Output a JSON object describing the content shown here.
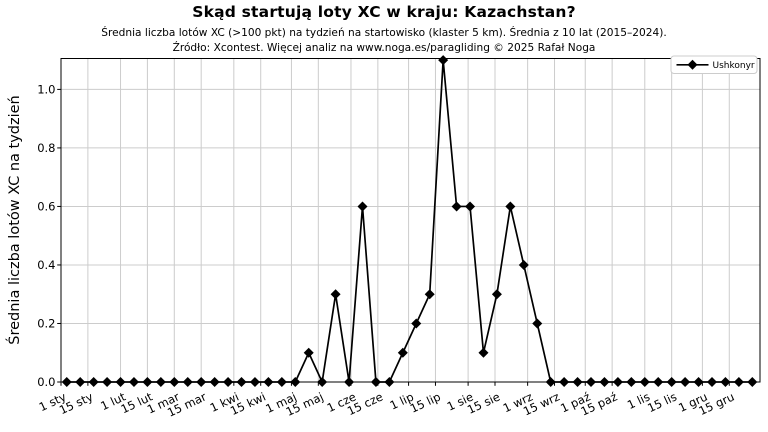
{
  "header": {
    "title": "Skąd startują loty XC w kraju: Kazachstan?",
    "subtitle": "Średnia liczba lotów XC (>100 pkt) na tydzień na startowisko (klaster 5 km). Średnia z 10 lat (2015–2024).",
    "source_note": "Źródło: Xcontest. Więcej analiz na www.noga.es/paragliding © 2025 Rafał Noga"
  },
  "chart_data": {
    "type": "line",
    "title": "Skąd startują loty XC w kraju: Kazachstan?",
    "subtitle": "Średnia liczba lotów XC (>100 pkt) na tydzień na startowisko (klaster 5 km). Średnia z 10 lat (2015–2024).",
    "source_note": "Źródło: Xcontest. Więcej analiz na www.noga.es/paragliding © 2025 Rafał Noga",
    "xlabel": "",
    "ylabel": "Średnia liczba lotów XC na tydzień",
    "ylim": [
      0,
      1.105
    ],
    "y_ticks": [
      0,
      0.2,
      0.4,
      0.6,
      0.8,
      1.0
    ],
    "grid": true,
    "legend_position": "top-right",
    "x_axis": {
      "unit": "day-of-year",
      "range_days": [
        0,
        364
      ],
      "tick_labels": [
        "1 sty",
        "15 sty",
        "1 lut",
        "15 lut",
        "1 mar",
        "15 mar",
        "1 kwi",
        "15 kwi",
        "1 maj",
        "15 maj",
        "1 cze",
        "15 cze",
        "1 lip",
        "15 lip",
        "1 sie",
        "15 sie",
        "1 wrz",
        "15 wrz",
        "1 paź",
        "15 paź",
        "1 lis",
        "15 lis",
        "1 gru",
        "15 gru"
      ],
      "tick_days": [
        0,
        14,
        31,
        45,
        59,
        73,
        90,
        104,
        120,
        134,
        151,
        165,
        181,
        195,
        212,
        226,
        243,
        257,
        273,
        287,
        304,
        318,
        334,
        348
      ]
    },
    "series": [
      {
        "name": "Ushkonyr",
        "marker": "diamond",
        "start_day": 3,
        "step_days": 7,
        "values": [
          0,
          0,
          0,
          0,
          0,
          0,
          0,
          0,
          0,
          0,
          0,
          0,
          0,
          0,
          0,
          0,
          0,
          0,
          0.1,
          0,
          0.3,
          0,
          0.6,
          0,
          0,
          0.1,
          0.2,
          0.3,
          1.1,
          0.6,
          0.6,
          0.1,
          0.3,
          0.6,
          0.4,
          0.2,
          0,
          0,
          0,
          0,
          0,
          0,
          0,
          0,
          0,
          0,
          0,
          0,
          0,
          0,
          0,
          0
        ]
      }
    ],
    "colors": {
      "line": "#000000",
      "marker": "#000000",
      "grid": "#cccccc",
      "spine": "#000000",
      "background": "#ffffff",
      "legend_border": "#cccccc",
      "text": "#000000"
    }
  }
}
